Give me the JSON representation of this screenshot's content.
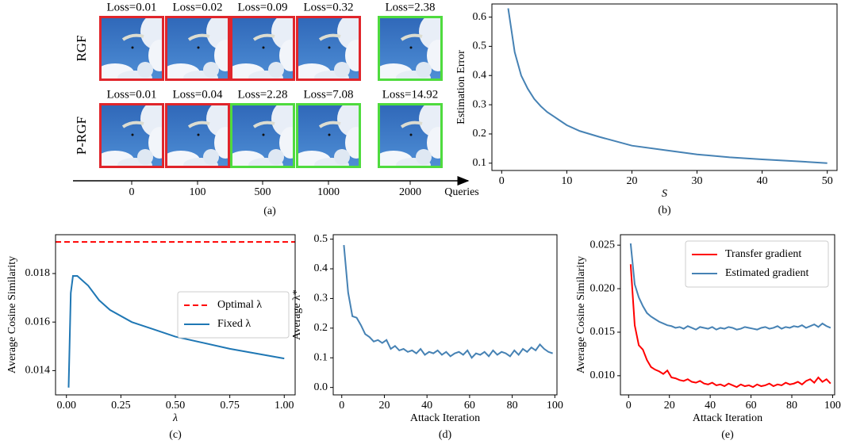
{
  "image_grid": {
    "rows": [
      {
        "label": "RGF",
        "losses": [
          "Loss=0.01",
          "Loss=0.02",
          "Loss=0.09",
          "Loss=0.32",
          "Loss=2.38"
        ],
        "borders": [
          "#e0252b",
          "#e0252b",
          "#e0252b",
          "#e0252b",
          "#4fdb3e"
        ]
      },
      {
        "label": "P-RGF",
        "losses": [
          "Loss=0.01",
          "Loss=0.04",
          "Loss=2.28",
          "Loss=7.08",
          "Loss=14.92"
        ],
        "borders": [
          "#e0252b",
          "#e0252b",
          "#4fdb3e",
          "#4fdb3e",
          "#4fdb3e"
        ]
      }
    ],
    "queries": [
      "0",
      "100",
      "500",
      "1000",
      "2000"
    ],
    "axis_label": "Queries",
    "caption": "(a)"
  },
  "chart_data": [
    {
      "type": "line",
      "caption": "(b)",
      "x_label": "S",
      "y_label": "Estimation Error",
      "xlim": [
        -1.5,
        51.5
      ],
      "ylim": [
        0.075,
        0.645
      ],
      "xticks": [
        0,
        10,
        20,
        30,
        40,
        50
      ],
      "yticks": [
        0.1,
        0.2,
        0.3,
        0.4,
        0.5,
        0.6
      ],
      "series": [
        {
          "name": "Estimation Error",
          "color": "#4682b4",
          "x": [
            1,
            2,
            3,
            4,
            5,
            6,
            7,
            8,
            9,
            10,
            12,
            15,
            20,
            25,
            30,
            35,
            40,
            45,
            50
          ],
          "values": [
            0.63,
            0.48,
            0.4,
            0.355,
            0.32,
            0.295,
            0.275,
            0.26,
            0.245,
            0.23,
            0.21,
            0.19,
            0.16,
            0.145,
            0.13,
            0.12,
            0.113,
            0.107,
            0.1
          ]
        }
      ]
    },
    {
      "type": "line",
      "caption": "(c)",
      "x_label": "λ",
      "y_label": "Average Cosine Similarity",
      "legend": "center right",
      "xlim": [
        -0.05,
        1.05
      ],
      "ylim": [
        0.013,
        0.0196
      ],
      "xticks": [
        {
          "value": 0,
          "label": "0.00"
        },
        {
          "value": 0.25,
          "label": "0.25"
        },
        {
          "value": 0.5,
          "label": "0.50"
        },
        {
          "value": 0.75,
          "label": "0.75"
        },
        {
          "value": 1,
          "label": "1.00"
        }
      ],
      "yticks": [
        0.014,
        0.016,
        0.018
      ],
      "series": [
        {
          "name": "Optimal λ",
          "color": "#ff0000",
          "dash": true,
          "x": [
            -0.05,
            1.05
          ],
          "values": [
            0.0193,
            0.0193
          ]
        },
        {
          "name": "Fixed λ",
          "color": "#1f77b4",
          "x": [
            0.01,
            0.02,
            0.03,
            0.05,
            0.1,
            0.15,
            0.2,
            0.3,
            0.4,
            0.5,
            0.75,
            1
          ],
          "values": [
            0.0133,
            0.0172,
            0.0179,
            0.0179,
            0.0175,
            0.0169,
            0.0165,
            0.016,
            0.0157,
            0.0154,
            0.0149,
            0.0145
          ]
        }
      ]
    },
    {
      "type": "line",
      "caption": "(d)",
      "x_label": "Attack Iteration",
      "y_label": "Average λ*",
      "xlim": [
        -4,
        101
      ],
      "ylim": [
        -0.025,
        0.515
      ],
      "xticks": [
        0,
        20,
        40,
        60,
        80,
        100
      ],
      "yticks": [
        {
          "value": 0,
          "label": "0.0"
        },
        0.1,
        0.2,
        0.3,
        0.4,
        0.5
      ],
      "series": [
        {
          "name": "Average λ*",
          "color": "#4682b4",
          "x": [
            1,
            3,
            5,
            7,
            9,
            11,
            13,
            15,
            17,
            19,
            21,
            23,
            25,
            27,
            29,
            31,
            33,
            35,
            37,
            39,
            41,
            43,
            45,
            47,
            49,
            51,
            53,
            55,
            57,
            59,
            61,
            63,
            65,
            67,
            69,
            71,
            73,
            75,
            77,
            79,
            81,
            83,
            85,
            87,
            89,
            91,
            93,
            95,
            97,
            99
          ],
          "values": [
            0.48,
            0.32,
            0.24,
            0.235,
            0.21,
            0.18,
            0.17,
            0.155,
            0.16,
            0.15,
            0.16,
            0.13,
            0.14,
            0.125,
            0.13,
            0.12,
            0.125,
            0.115,
            0.13,
            0.11,
            0.12,
            0.115,
            0.125,
            0.11,
            0.12,
            0.105,
            0.115,
            0.12,
            0.11,
            0.125,
            0.1,
            0.115,
            0.11,
            0.12,
            0.105,
            0.125,
            0.11,
            0.12,
            0.115,
            0.105,
            0.125,
            0.11,
            0.13,
            0.12,
            0.135,
            0.125,
            0.145,
            0.13,
            0.12,
            0.115
          ]
        }
      ]
    },
    {
      "type": "line",
      "caption": "(e)",
      "x_label": "Attack Iteration",
      "y_label": "Average Cosine Similarity",
      "legend": "upper right",
      "xlim": [
        -4,
        101
      ],
      "ylim": [
        0.0078,
        0.0262
      ],
      "xticks": [
        0,
        20,
        40,
        60,
        80,
        100
      ],
      "yticks": [
        {
          "value": 0.01,
          "label": "0.010"
        },
        0.015,
        {
          "value": 0.02,
          "label": "0.020"
        },
        0.025
      ],
      "series": [
        {
          "name": "Transfer gradient",
          "color": "#ff0000",
          "x": [
            1,
            3,
            5,
            7,
            9,
            11,
            13,
            15,
            17,
            19,
            21,
            23,
            25,
            27,
            29,
            31,
            33,
            35,
            37,
            39,
            41,
            43,
            45,
            47,
            49,
            51,
            53,
            55,
            57,
            59,
            61,
            63,
            65,
            67,
            69,
            71,
            73,
            75,
            77,
            79,
            81,
            83,
            85,
            87,
            89,
            91,
            93,
            95,
            97,
            99
          ],
          "values": [
            0.0228,
            0.0158,
            0.0135,
            0.013,
            0.0118,
            0.011,
            0.0107,
            0.0105,
            0.0102,
            0.0106,
            0.0098,
            0.0097,
            0.0095,
            0.0094,
            0.0096,
            0.0093,
            0.0092,
            0.0094,
            0.0091,
            0.009,
            0.0092,
            0.0089,
            0.009,
            0.0088,
            0.0091,
            0.0089,
            0.0087,
            0.009,
            0.0088,
            0.0089,
            0.0087,
            0.009,
            0.0088,
            0.0089,
            0.0091,
            0.0088,
            0.009,
            0.0089,
            0.0092,
            0.009,
            0.0091,
            0.0093,
            0.009,
            0.0094,
            0.0096,
            0.0092,
            0.0098,
            0.0093,
            0.0096,
            0.0091
          ]
        },
        {
          "name": "Estimated gradient",
          "color": "#4682b4",
          "x": [
            1,
            3,
            5,
            7,
            9,
            11,
            13,
            15,
            17,
            19,
            21,
            23,
            25,
            27,
            29,
            31,
            33,
            35,
            37,
            39,
            41,
            43,
            45,
            47,
            49,
            51,
            53,
            55,
            57,
            59,
            61,
            63,
            65,
            67,
            69,
            71,
            73,
            75,
            77,
            79,
            81,
            83,
            85,
            87,
            89,
            91,
            93,
            95,
            97,
            99
          ],
          "values": [
            0.0252,
            0.0205,
            0.019,
            0.018,
            0.0172,
            0.0168,
            0.0165,
            0.0162,
            0.016,
            0.0158,
            0.0157,
            0.0155,
            0.0156,
            0.0154,
            0.0157,
            0.0155,
            0.0153,
            0.0156,
            0.0155,
            0.0154,
            0.0156,
            0.0153,
            0.0155,
            0.0154,
            0.0156,
            0.0155,
            0.0153,
            0.0154,
            0.0156,
            0.0155,
            0.0154,
            0.0153,
            0.0155,
            0.0156,
            0.0154,
            0.0155,
            0.0157,
            0.0154,
            0.0156,
            0.0155,
            0.0157,
            0.0156,
            0.0158,
            0.0155,
            0.0157,
            0.0159,
            0.0156,
            0.016,
            0.0157,
            0.0155
          ]
        }
      ]
    }
  ]
}
